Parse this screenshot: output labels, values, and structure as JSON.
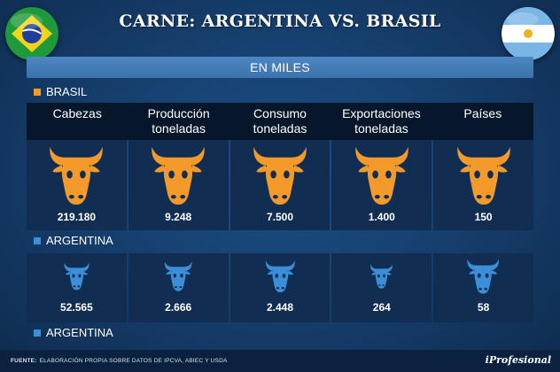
{
  "title": "CARNE: ARGENTINA VS. BRASIL",
  "units": "EN MILES",
  "flags": {
    "left": {
      "name": "brazil-flag"
    },
    "right": {
      "name": "argentina-flag"
    }
  },
  "colors": {
    "brasil": "#f39a2a",
    "argentina": "#3a8fd8"
  },
  "legend": {
    "brasil": "BRASIL",
    "argentina": "ARGENTINA",
    "argentina_bottom": "ARGENTINA"
  },
  "columns": [
    {
      "line1": "Cabezas",
      "line2": ""
    },
    {
      "line1": "Producción",
      "line2": "toneladas"
    },
    {
      "line1": "Consumo",
      "line2": "toneladas"
    },
    {
      "line1": "Exportaciones",
      "line2": "toneladas"
    },
    {
      "line1": "Países",
      "line2": ""
    }
  ],
  "chart_data": {
    "type": "table",
    "title": "CARNE: ARGENTINA VS. BRASIL",
    "subtitle": "EN MILES",
    "categories": [
      "Cabezas",
      "Producción toneladas",
      "Consumo toneladas",
      "Exportaciones toneladas",
      "Países"
    ],
    "series": [
      {
        "name": "BRASIL",
        "values": [
          219180,
          9248,
          7500,
          1400,
          150
        ],
        "labels": [
          "219.180",
          "9.248",
          "7.500",
          "1.400",
          "150"
        ]
      },
      {
        "name": "ARGENTINA",
        "values": [
          52565,
          2666,
          2448,
          264,
          58
        ],
        "labels": [
          "52.565",
          "2.666",
          "2.448",
          "264",
          "58"
        ]
      }
    ]
  },
  "footer": {
    "source_label": "FUENTE:",
    "source_text": "ELABORACIÓN PROPIA SOBRE DATOS DE IPCVA, ABIEC Y USDA",
    "brand": "iProfesional"
  }
}
